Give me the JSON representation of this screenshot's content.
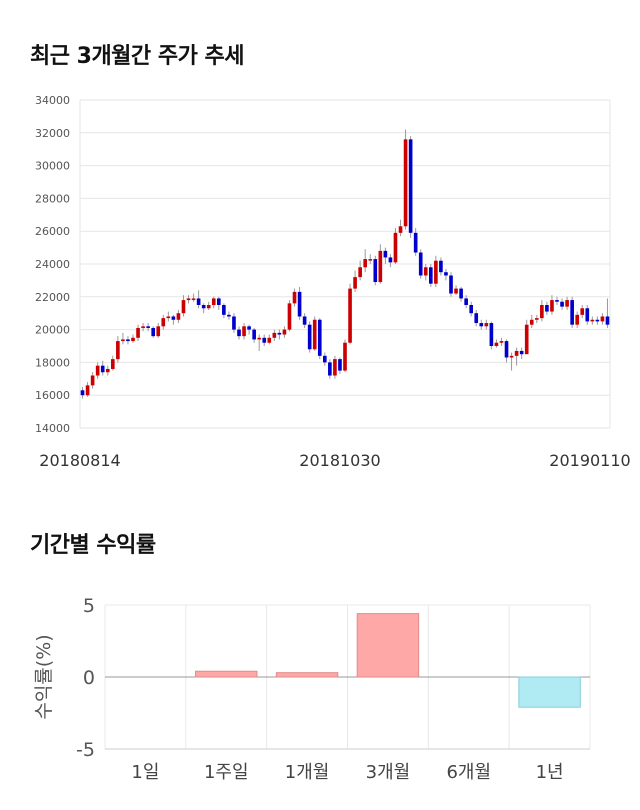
{
  "sections": {
    "price_title": "최근 3개월간 주가 추세",
    "returns_title": "기간별 수익률"
  },
  "chart_data": [
    {
      "type": "candlestick",
      "title": "최근 3개월간 주가 추세",
      "ylim": [
        14000,
        34000
      ],
      "yticks": [
        "34000",
        "32000",
        "30000",
        "28000",
        "26000",
        "24000",
        "22000",
        "20000",
        "18000",
        "16000",
        "14000"
      ],
      "xticks": [
        "20180814",
        "20181030",
        "20190110"
      ],
      "grid": true,
      "up_color": "#cc0000",
      "down_color": "#0000cc",
      "candles": [
        [
          16300,
          16000,
          16500,
          15800
        ],
        [
          16000,
          16600,
          16800,
          15900
        ],
        [
          16600,
          17200,
          17400,
          16400
        ],
        [
          17200,
          17800,
          18000,
          17000
        ],
        [
          17800,
          17400,
          18100,
          17200
        ],
        [
          17400,
          17600,
          17800,
          17200
        ],
        [
          17600,
          18200,
          18400,
          17500
        ],
        [
          18200,
          19300,
          19600,
          18000
        ],
        [
          19300,
          19400,
          19800,
          19100
        ],
        [
          19400,
          19300,
          19600,
          19100
        ],
        [
          19300,
          19500,
          19700,
          19200
        ],
        [
          19500,
          20100,
          20300,
          19300
        ],
        [
          20100,
          20200,
          20400,
          19900
        ],
        [
          20200,
          20100,
          20400,
          19900
        ],
        [
          20100,
          19600,
          20200,
          19500
        ],
        [
          19600,
          20200,
          20400,
          19500
        ],
        [
          20200,
          20700,
          20900,
          20000
        ],
        [
          20700,
          20800,
          21100,
          20500
        ],
        [
          20800,
          20600,
          20900,
          20300
        ],
        [
          20600,
          21000,
          21200,
          20400
        ],
        [
          21000,
          21800,
          22100,
          20800
        ],
        [
          21800,
          21900,
          22100,
          21600
        ],
        [
          21900,
          21900,
          22200,
          21700
        ],
        [
          21900,
          21500,
          22400,
          21300
        ],
        [
          21500,
          21300,
          21600,
          21000
        ],
        [
          21300,
          21500,
          21700,
          21200
        ],
        [
          21500,
          21900,
          22000,
          21300
        ],
        [
          21900,
          21500,
          22000,
          21200
        ],
        [
          21500,
          20900,
          21600,
          20700
        ],
        [
          20900,
          20800,
          21100,
          20600
        ],
        [
          20800,
          20000,
          21000,
          19800
        ],
        [
          20000,
          19600,
          20200,
          19400
        ],
        [
          19600,
          20200,
          20400,
          19400
        ],
        [
          20200,
          20000,
          20300,
          19700
        ],
        [
          20000,
          19400,
          20100,
          19200
        ],
        [
          19400,
          19500,
          19700,
          18700
        ],
        [
          19500,
          19200,
          19700,
          19000
        ],
        [
          19200,
          19500,
          19700,
          19100
        ],
        [
          19500,
          19800,
          20000,
          19300
        ],
        [
          19800,
          19700,
          20000,
          19400
        ],
        [
          19700,
          20000,
          20200,
          19500
        ],
        [
          20000,
          21600,
          21800,
          19900
        ],
        [
          21600,
          22300,
          22500,
          21400
        ],
        [
          22300,
          20800,
          22600,
          20600
        ],
        [
          20800,
          20300,
          21000,
          20100
        ],
        [
          20300,
          18800,
          20500,
          18600
        ],
        [
          18800,
          20600,
          20800,
          18700
        ],
        [
          20600,
          18400,
          20700,
          18200
        ],
        [
          18400,
          18000,
          18600,
          17800
        ],
        [
          18000,
          17200,
          18200,
          17000
        ],
        [
          17200,
          18200,
          18400,
          17000
        ],
        [
          18200,
          17500,
          18300,
          17300
        ],
        [
          17500,
          19200,
          19400,
          17400
        ],
        [
          19200,
          22500,
          22800,
          19100
        ],
        [
          22500,
          23200,
          23600,
          22300
        ],
        [
          23200,
          23800,
          24200,
          23000
        ],
        [
          23800,
          24300,
          24900,
          23500
        ],
        [
          24300,
          24300,
          24600,
          24000
        ],
        [
          24300,
          22900,
          24500,
          22700
        ],
        [
          22900,
          24800,
          25200,
          22800
        ],
        [
          24800,
          24400,
          25000,
          24000
        ],
        [
          24400,
          24100,
          24600,
          23800
        ],
        [
          24100,
          25900,
          26200,
          24000
        ],
        [
          25900,
          26300,
          26700,
          25700
        ],
        [
          26300,
          31600,
          32200,
          26100
        ],
        [
          31600,
          25900,
          31800,
          25600
        ],
        [
          25900,
          24700,
          26200,
          24500
        ],
        [
          24700,
          23300,
          24900,
          23100
        ],
        [
          23300,
          23800,
          24000,
          23000
        ],
        [
          23800,
          22800,
          24000,
          22600
        ],
        [
          22800,
          24200,
          24500,
          22600
        ],
        [
          24200,
          23500,
          24400,
          23300
        ],
        [
          23500,
          23300,
          23700,
          23000
        ],
        [
          23300,
          22200,
          23500,
          22000
        ],
        [
          22200,
          22500,
          22700,
          22100
        ],
        [
          22500,
          21900,
          22600,
          21700
        ],
        [
          21900,
          21500,
          22100,
          21300
        ],
        [
          21500,
          21000,
          21700,
          20800
        ],
        [
          21000,
          20400,
          21200,
          20200
        ],
        [
          20400,
          20200,
          20600,
          20000
        ],
        [
          20200,
          20400,
          20600,
          20000
        ],
        [
          20400,
          19000,
          20500,
          18800
        ],
        [
          19000,
          19200,
          19400,
          18900
        ],
        [
          19200,
          19300,
          19500,
          19000
        ],
        [
          19300,
          18300,
          19400,
          18000
        ],
        [
          18300,
          18400,
          18600,
          17500
        ],
        [
          18400,
          18700,
          18900,
          17800
        ],
        [
          18700,
          18500,
          18900,
          18200
        ],
        [
          18500,
          20300,
          20600,
          19200
        ],
        [
          20300,
          20600,
          20900,
          20100
        ],
        [
          20600,
          20700,
          20900,
          20400
        ],
        [
          20700,
          21500,
          21800,
          20500
        ],
        [
          21500,
          21100,
          21700,
          20900
        ],
        [
          21100,
          21800,
          22100,
          20900
        ],
        [
          21800,
          21700,
          22000,
          21500
        ],
        [
          21700,
          21400,
          21900,
          21200
        ],
        [
          21400,
          21800,
          22000,
          21200
        ],
        [
          21800,
          20300,
          22000,
          20100
        ],
        [
          20300,
          20900,
          21100,
          20100
        ],
        [
          20900,
          21300,
          21500,
          20700
        ],
        [
          21300,
          20500,
          21500,
          20300
        ],
        [
          20500,
          20600,
          20800,
          20300
        ],
        [
          20600,
          20500,
          20800,
          20300
        ],
        [
          20500,
          20800,
          21000,
          20300
        ],
        [
          20800,
          20300,
          21900,
          20100
        ]
      ]
    },
    {
      "type": "bar",
      "title": "기간별 수익률",
      "ylabel": "수익률(%)",
      "ylim": [
        -5,
        5
      ],
      "yticks": [
        "5",
        "0",
        "-5"
      ],
      "categories": [
        "1일",
        "1주일",
        "1개월",
        "3개월",
        "6개월",
        "1년"
      ],
      "values": [
        0,
        0.4,
        0.3,
        4.4,
        0,
        -2.1
      ],
      "positive_color": "#ffa8a8",
      "negative_color": "#b0eaf2"
    }
  ]
}
